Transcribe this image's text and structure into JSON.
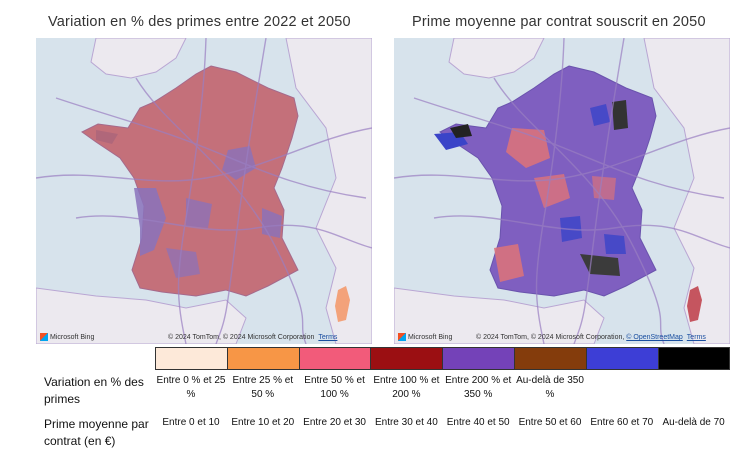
{
  "maps": [
    {
      "title": "Variation en % des primes entre 2022 et 2050",
      "attribution": "© 2024 TomTom, © 2024 Microsoft Corporation",
      "terms": "Terms",
      "osm": ""
    },
    {
      "title": "Prime moyenne par contrat souscrit en 2050",
      "attribution": "© 2024 TomTom, © 2024 Microsoft Corporation,",
      "terms": "Terms",
      "osm": "© OpenStreetMap"
    }
  ],
  "bing_label": "Microsoft Bing",
  "legend": {
    "colors": [
      "#fde9d9",
      "#f79646",
      "#f25b7a",
      "#9b0f12",
      "#7442b8",
      "#843c0c",
      "#3d3ed6",
      "#000000"
    ],
    "row1_label": "Variation en % des primes",
    "row1": [
      "Entre 0 % et 25 %",
      "Entre 25 % et 50 %",
      "Entre 50 % et 100 %",
      "Entre 100 % et 200 %",
      "Entre 200 % et 350 %",
      "Au-delà de 350 %",
      "",
      ""
    ],
    "row2_label": "Prime moyenne par contrat (en €)",
    "row2": [
      "Entre 0 et 10",
      "Entre 10 et 20",
      "Entre 20 et 30",
      "Entre 30 et 40",
      "Entre 40 et 50",
      "Entre 50 et 60",
      "Entre 60 et 70",
      "Au-delà de 70"
    ]
  }
}
